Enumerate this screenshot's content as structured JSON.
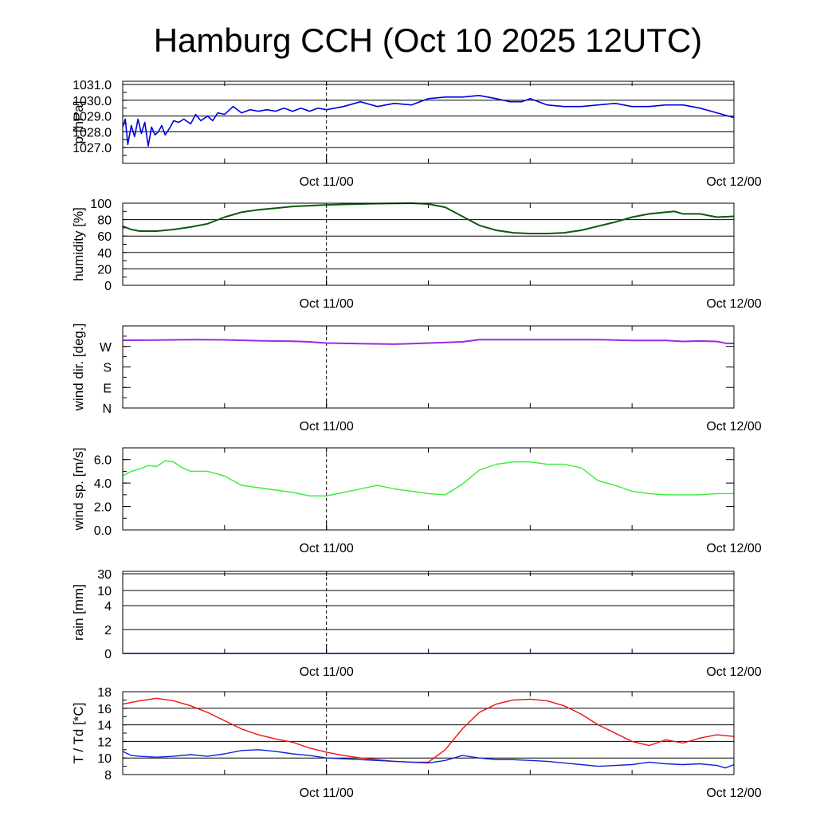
{
  "chart_data": {
    "type": "line",
    "title": "Hamburg CCH (Oct 10 2025 12UTC)",
    "x_range_hours": [
      0,
      36
    ],
    "x_ticks": [
      {
        "hours": 12,
        "label": "Oct 11/00"
      },
      {
        "hours": 36,
        "label": "Oct 12/00"
      }
    ],
    "panels": [
      {
        "key": "pressure",
        "ylabel": "p [hPa]",
        "ylim": [
          1026.0,
          1031.2
        ],
        "yticks": [
          1027.0,
          1028.0,
          1029.0,
          1030.0,
          1031.0
        ],
        "ytick_labels": [
          "1027.0",
          "1028.0",
          "1029.0",
          "1030.0",
          "1031.0"
        ],
        "grid": true,
        "series": [
          {
            "color": "#0000dd",
            "width": 1.6,
            "x": [
              0,
              0.15,
              0.3,
              0.5,
              0.7,
              0.9,
              1.1,
              1.3,
              1.5,
              1.7,
              1.9,
              2.1,
              2.3,
              2.5,
              2.8,
              3.0,
              3.3,
              3.6,
              4.0,
              4.3,
              4.6,
              5.0,
              5.3,
              5.6,
              6.0,
              6.5,
              7.0,
              7.5,
              8.0,
              8.5,
              9.0,
              9.5,
              10.0,
              10.5,
              11.0,
              11.5,
              12.0,
              12.5,
              13.0,
              14.0,
              15.0,
              16.0,
              17.0,
              18.0,
              19.0,
              20.0,
              21.0,
              22.0,
              22.8,
              23.5,
              24.0,
              24.5,
              25.0,
              26.0,
              27.0,
              28.0,
              29.0,
              30.0,
              31.0,
              32.0,
              33.0,
              34.0,
              35.0,
              36.0
            ],
            "values": [
              1028.3,
              1028.8,
              1027.2,
              1028.4,
              1027.7,
              1028.8,
              1027.9,
              1028.6,
              1027.1,
              1028.3,
              1027.8,
              1028.0,
              1028.4,
              1027.8,
              1028.3,
              1028.7,
              1028.6,
              1028.8,
              1028.5,
              1029.1,
              1028.7,
              1029.0,
              1028.7,
              1029.2,
              1029.1,
              1029.6,
              1029.2,
              1029.4,
              1029.3,
              1029.4,
              1029.3,
              1029.5,
              1029.3,
              1029.5,
              1029.3,
              1029.5,
              1029.4,
              1029.5,
              1029.6,
              1029.9,
              1029.6,
              1029.8,
              1029.7,
              1030.1,
              1030.2,
              1030.2,
              1030.3,
              1030.1,
              1029.9,
              1029.9,
              1030.1,
              1029.9,
              1029.7,
              1029.6,
              1029.6,
              1029.7,
              1029.8,
              1029.6,
              1029.6,
              1029.7,
              1029.7,
              1029.5,
              1029.2,
              1028.9
            ]
          }
        ]
      },
      {
        "key": "humidity",
        "ylabel": "humidity [%]",
        "ylim": [
          0,
          100
        ],
        "yticks": [
          0,
          20,
          40,
          60,
          80,
          100
        ],
        "ytick_labels": [
          "0",
          "20",
          "40",
          "60",
          "80",
          "100"
        ],
        "grid": true,
        "series": [
          {
            "color": "#0a5a0a",
            "width": 2.0,
            "x": [
              0,
              0.5,
              1.0,
              2.0,
              3.0,
              4.0,
              5.0,
              6.0,
              7.0,
              8.0,
              9.0,
              10.0,
              11.0,
              12.0,
              13.0,
              14.0,
              15.0,
              16.0,
              17.0,
              18.0,
              19.0,
              20.0,
              21.0,
              22.0,
              23.0,
              24.0,
              25.0,
              26.0,
              27.0,
              28.0,
              29.0,
              30.0,
              31.0,
              32.0,
              32.5,
              33.0,
              34.0,
              35.0,
              36.0
            ],
            "values": [
              72,
              68,
              66,
              66,
              68,
              71,
              75,
              83,
              89,
              92,
              94,
              96,
              97,
              98,
              98.5,
              99,
              99.5,
              99.8,
              100,
              99,
              95,
              84,
              73,
              67,
              64,
              63,
              63,
              64,
              67,
              72,
              77,
              83,
              87,
              89,
              90,
              87,
              87,
              83,
              84
            ]
          }
        ]
      },
      {
        "key": "wind_dir",
        "ylabel": "wind dir. [deg.]",
        "ylim": [
          0,
          360
        ],
        "yticks": [
          0,
          90,
          180,
          270
        ],
        "ytick_labels": [
          "N",
          "E",
          "S",
          "W"
        ],
        "grid": false,
        "series": [
          {
            "color": "#9a2be0",
            "width": 2.0,
            "x": [
              0,
              2,
              4,
              6,
              8,
              10,
              11,
              12,
              14,
              16,
              17,
              18,
              20,
              21,
              22,
              24,
              26,
              28,
              30,
              32,
              33,
              34,
              35,
              35.5,
              36
            ],
            "values": [
              297,
              298,
              300,
              299,
              295,
              293,
              290,
              285,
              282,
              280,
              282,
              285,
              290,
              300,
              300,
              300,
              300,
              300,
              296,
              296,
              292,
              294,
              292,
              284,
              283
            ]
          }
        ]
      },
      {
        "key": "wind_speed",
        "ylabel": "wind sp. [m/s]",
        "ylim": [
          0,
          7
        ],
        "yticks": [
          0,
          2,
          4,
          6
        ],
        "ytick_labels": [
          "0.0",
          "2.0",
          "4.0",
          "6.0"
        ],
        "grid": false,
        "series": [
          {
            "color": "#33ee33",
            "width": 1.4,
            "x": [
              0,
              0.5,
              1.0,
              1.5,
              2.0,
              2.5,
              3.0,
              3.5,
              4.0,
              5.0,
              6.0,
              7.0,
              8.0,
              9.0,
              10.0,
              11.0,
              12.0,
              13.0,
              14.0,
              15.0,
              16.0,
              17.0,
              18.0,
              19.0,
              20.0,
              21.0,
              22.0,
              23.0,
              24.0,
              25.0,
              26.0,
              27.0,
              28.0,
              29.0,
              30.0,
              31.0,
              32.0,
              33.0,
              34.0,
              35.0,
              35.5,
              36.0
            ],
            "values": [
              4.6,
              5.0,
              5.2,
              5.5,
              5.4,
              5.9,
              5.8,
              5.3,
              5.0,
              5.0,
              4.6,
              3.8,
              3.6,
              3.4,
              3.2,
              2.9,
              2.9,
              3.2,
              3.5,
              3.8,
              3.5,
              3.3,
              3.1,
              3.0,
              3.9,
              5.1,
              5.6,
              5.8,
              5.8,
              5.6,
              5.6,
              5.3,
              4.2,
              3.8,
              3.3,
              3.1,
              3.0,
              3.0,
              3.0,
              3.1,
              3.1,
              3.1
            ]
          }
        ]
      },
      {
        "key": "rain",
        "ylabel": "rain [mm]",
        "ylim": [
          0,
          31
        ],
        "yticks": [
          0,
          2,
          4,
          10,
          30
        ],
        "ytick_labels": [
          "0",
          "2",
          "4",
          "10",
          "30"
        ],
        "scale": "nonlinear",
        "grid": true,
        "series": [
          {
            "color": "#0000dd",
            "width": 1.5,
            "x": [
              0,
              36
            ],
            "values": [
              0,
              0
            ]
          }
        ]
      },
      {
        "key": "temperature",
        "ylabel": "T / Td [*C]",
        "ylim": [
          8,
          18
        ],
        "yticks": [
          8,
          10,
          12,
          14,
          16,
          18
        ],
        "ytick_labels": [
          "8",
          "10",
          "12",
          "14",
          "16",
          "18"
        ],
        "grid": true,
        "series": [
          {
            "color": "#ee1111",
            "width": 1.4,
            "x": [
              0,
              1,
              2,
              3,
              4,
              5,
              6,
              7,
              8,
              9,
              10,
              11,
              12,
              13,
              14,
              15,
              16,
              17,
              18,
              19,
              20,
              21,
              22,
              23,
              24,
              25,
              26,
              27,
              28,
              29,
              30,
              31,
              32,
              33,
              34,
              35,
              36
            ],
            "values": [
              16.5,
              16.9,
              17.2,
              16.9,
              16.3,
              15.5,
              14.5,
              13.5,
              12.8,
              12.3,
              11.9,
              11.2,
              10.7,
              10.3,
              10.0,
              9.8,
              9.6,
              9.5,
              9.5,
              11.0,
              13.5,
              15.5,
              16.5,
              17.0,
              17.1,
              16.9,
              16.3,
              15.3,
              14.0,
              13.0,
              12.0,
              11.5,
              12.2,
              11.8,
              12.4,
              12.8,
              12.6
            ]
          },
          {
            "color": "#1020dd",
            "width": 1.4,
            "x": [
              0,
              0.5,
              1,
              2,
              3,
              4,
              5,
              6,
              7,
              8,
              9,
              10,
              11,
              12,
              13,
              14,
              15,
              16,
              17,
              18,
              19,
              20,
              21,
              22,
              23,
              24,
              25,
              26,
              27,
              28,
              29,
              30,
              31,
              32,
              33,
              34,
              35,
              35.5,
              36
            ],
            "values": [
              10.8,
              10.3,
              10.2,
              10.1,
              10.2,
              10.4,
              10.2,
              10.5,
              10.9,
              11.0,
              10.8,
              10.5,
              10.3,
              10.0,
              9.9,
              9.8,
              9.7,
              9.6,
              9.5,
              9.4,
              9.7,
              10.3,
              10.0,
              9.8,
              9.8,
              9.7,
              9.6,
              9.4,
              9.2,
              9.0,
              9.1,
              9.2,
              9.5,
              9.3,
              9.2,
              9.3,
              9.1,
              8.8,
              9.2
            ]
          }
        ]
      }
    ]
  }
}
